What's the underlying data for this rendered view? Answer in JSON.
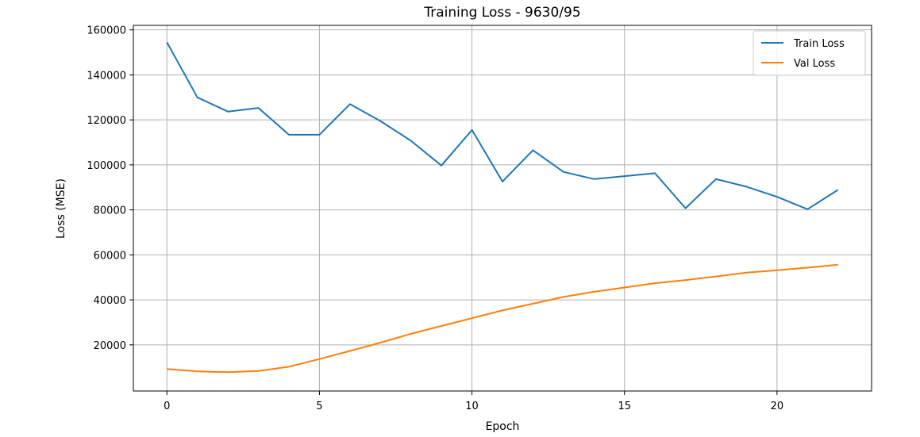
{
  "chart_data": {
    "type": "line",
    "title": "Training Loss - 9630/95",
    "xlabel": "Epoch",
    "ylabel": "Loss (MSE)",
    "xlim": [
      -1.1,
      23.1
    ],
    "ylim": [
      -500,
      162000
    ],
    "xticks": [
      0,
      5,
      10,
      15,
      20
    ],
    "yticks": [
      20000,
      40000,
      60000,
      80000,
      100000,
      120000,
      140000,
      160000
    ],
    "grid": true,
    "legend_position": "top-right",
    "x": [
      0,
      1,
      2,
      3,
      4,
      5,
      6,
      7,
      8,
      9,
      10,
      11,
      12,
      13,
      14,
      15,
      16,
      17,
      18,
      19,
      20,
      21,
      22
    ],
    "series": [
      {
        "name": "Train Loss",
        "color": "#1f77b4",
        "values": [
          154500,
          130000,
          123700,
          125300,
          113400,
          113400,
          127000,
          119500,
          110700,
          99700,
          115500,
          92600,
          106500,
          96900,
          93700,
          95000,
          96300,
          80700,
          93700,
          90300,
          85800,
          80300,
          88900
        ]
      },
      {
        "name": "Val Loss",
        "color": "#ff7f0e",
        "values": [
          9300,
          8200,
          7900,
          8400,
          10300,
          13700,
          17300,
          21000,
          24900,
          28400,
          31900,
          35300,
          38300,
          41300,
          43600,
          45500,
          47400,
          48800,
          50400,
          52100,
          53200,
          54300,
          55600
        ]
      }
    ]
  }
}
